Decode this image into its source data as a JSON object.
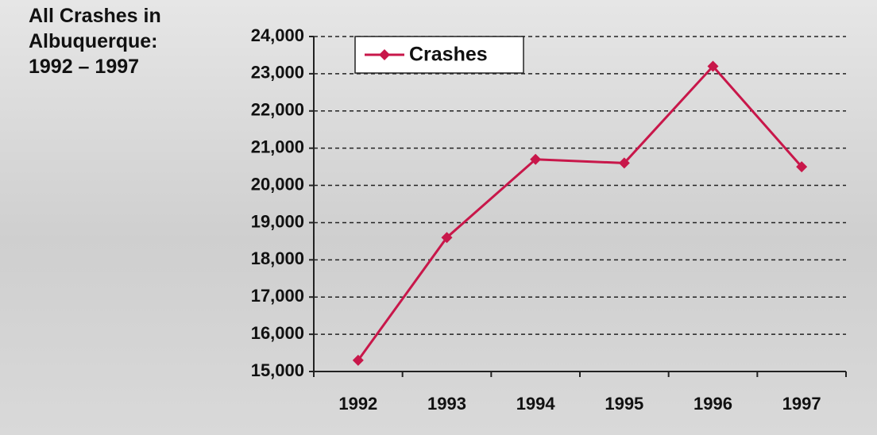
{
  "chart_data": {
    "type": "line",
    "title": "All Crashes in Albuquerque: 1992 – 1997",
    "categories": [
      "1992",
      "1993",
      "1994",
      "1995",
      "1996",
      "1997"
    ],
    "series": [
      {
        "name": "Crashes",
        "color": "#c8174a",
        "values": [
          15300,
          18600,
          20700,
          20600,
          23200,
          20500
        ]
      }
    ],
    "ylim": [
      15000,
      24000
    ],
    "yticks": [
      {
        "value": 15000,
        "label": "15,000"
      },
      {
        "value": 16000,
        "label": "16,000"
      },
      {
        "value": 17000,
        "label": "17,000"
      },
      {
        "value": 18000,
        "label": "18,000"
      },
      {
        "value": 19000,
        "label": "19,000"
      },
      {
        "value": 20000,
        "label": "20,000"
      },
      {
        "value": 21000,
        "label": "21,000"
      },
      {
        "value": 22000,
        "label": "22,000"
      },
      {
        "value": 23000,
        "label": "23,000"
      },
      {
        "value": 24000,
        "label": "24,000"
      }
    ],
    "grid": true,
    "legend": "top-left"
  }
}
